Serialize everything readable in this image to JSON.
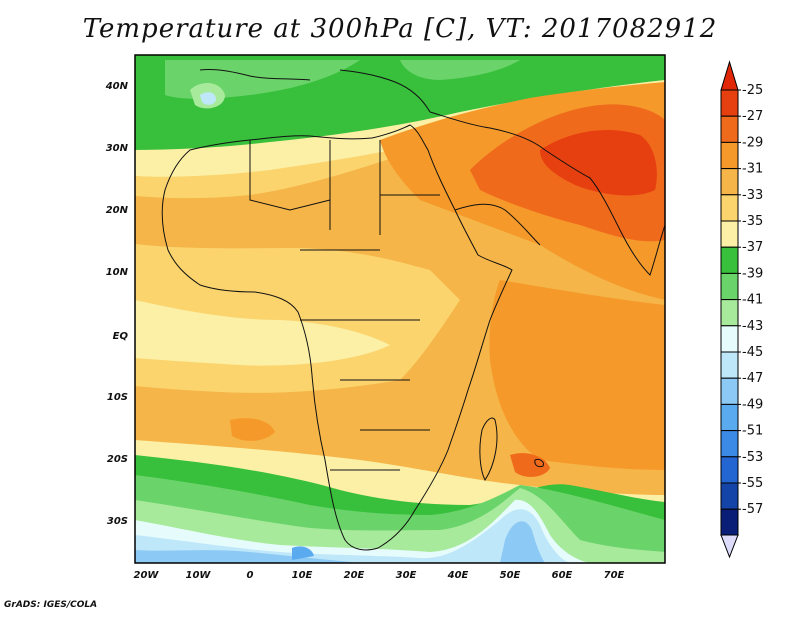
{
  "title": "Temperature at 300hPa [C], VT: 2017082912",
  "credit": "GrADS: IGES/COLA",
  "lat_labels": [
    "40N",
    "30N",
    "20N",
    "10N",
    "EQ",
    "10S",
    "20S",
    "30S"
  ],
  "lon_labels": [
    "20W",
    "10W",
    "0",
    "10E",
    "20E",
    "30E",
    "40E",
    "50E",
    "60E",
    "70E"
  ],
  "colorbar": {
    "labels": [
      "-25",
      "-27",
      "-29",
      "-31",
      "-33",
      "-35",
      "-37",
      "-39",
      "-41",
      "-43",
      "-45",
      "-47",
      "-49",
      "-51",
      "-53",
      "-55",
      "-57"
    ],
    "colors": [
      "#e64010",
      "#f06a1c",
      "#f59a2a",
      "#f5b548",
      "#fbd46e",
      "#fbf0a6",
      "#38bf3c",
      "#6ad46a",
      "#a8ea9c",
      "#e6fbfb",
      "#bfe7fa",
      "#8ccaf5",
      "#5aaaf0",
      "#3a8ae6",
      "#2366d2",
      "#1544a8",
      "#0a1e78"
    ],
    "top_color": "#e02808",
    "bottom_color": "#dcdcfa"
  }
}
